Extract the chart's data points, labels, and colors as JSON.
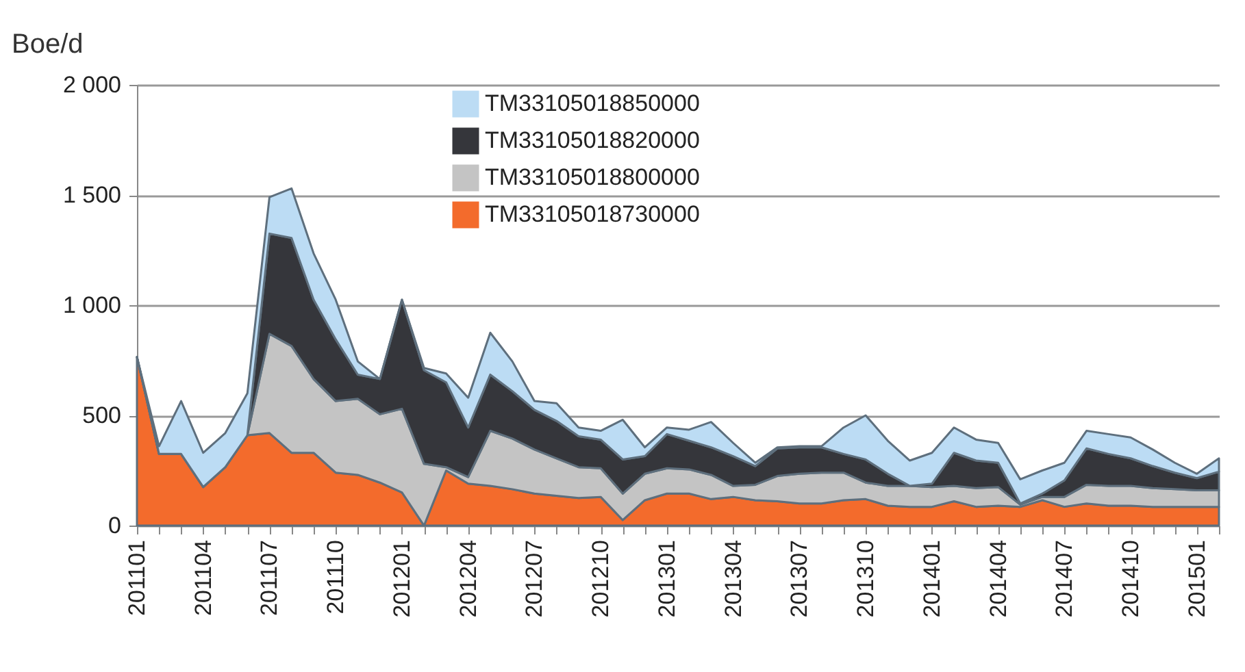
{
  "chart_data": {
    "type": "area",
    "ylabel": "Boe/d",
    "stacked": true,
    "grid": "y",
    "legend": "top left",
    "ylim": [
      0,
      2000
    ],
    "yticks": [
      {
        "value": 0,
        "label": "0"
      },
      {
        "value": 500,
        "label": "500"
      },
      {
        "value": 1000,
        "label": "1 000"
      },
      {
        "value": 1500,
        "label": "1 500"
      },
      {
        "value": 2000,
        "label": "2 000"
      }
    ],
    "categories": [
      "201101",
      null,
      null,
      "201104",
      null,
      null,
      "201107",
      null,
      null,
      "201110",
      null,
      null,
      "201201",
      null,
      null,
      "201204",
      null,
      null,
      "201207",
      null,
      null,
      "201210",
      null,
      null,
      "201301",
      null,
      null,
      "201304",
      null,
      null,
      "201307",
      null,
      null,
      "201310",
      null,
      null,
      "201401",
      null,
      null,
      "201404",
      null,
      null,
      "201407",
      null,
      null,
      "201410",
      null,
      null,
      "201501",
      null
    ],
    "series": [
      {
        "name": "TM33105018730000",
        "color": "#f36b2c",
        "values": [
          765,
          325,
          325,
          175,
          265,
          410,
          420,
          330,
          330,
          240,
          230,
          195,
          150,
          0,
          250,
          190,
          180,
          165,
          145,
          135,
          125,
          130,
          25,
          115,
          145,
          145,
          120,
          130,
          115,
          110,
          100,
          100,
          115,
          120,
          90,
          85,
          85,
          110,
          85,
          90,
          85,
          115,
          85,
          100,
          90,
          90,
          85,
          85,
          85,
          85
        ]
      },
      {
        "name": "TM33105018800000",
        "color": "#c4c4c4",
        "values": [
          0,
          0,
          0,
          0,
          0,
          0,
          450,
          485,
          335,
          325,
          345,
          310,
          380,
          280,
          15,
          30,
          250,
          230,
          200,
          170,
          140,
          130,
          120,
          120,
          115,
          110,
          110,
          50,
          70,
          115,
          135,
          140,
          125,
          75,
          90,
          95,
          90,
          70,
          85,
          85,
          10,
          15,
          45,
          85,
          90,
          90,
          85,
          80,
          75,
          75
        ]
      },
      {
        "name": "TM33105018820000",
        "color": "#35363b",
        "values": [
          0,
          0,
          0,
          0,
          0,
          0,
          455,
          490,
          360,
          280,
          110,
          160,
          495,
          425,
          385,
          225,
          255,
          215,
          180,
          170,
          140,
          130,
          155,
          80,
          155,
          130,
          125,
          135,
          85,
          125,
          120,
          115,
          85,
          105,
          55,
          0,
          15,
          150,
          125,
          110,
          5,
          15,
          75,
          165,
          145,
          125,
          100,
          75,
          55,
          85
        ]
      },
      {
        "name": "TM33105018850000",
        "color": "#bcdcf4",
        "values": [
          0,
          35,
          240,
          155,
          155,
          190,
          165,
          225,
          210,
          180,
          60,
          0,
          0,
          10,
          40,
          135,
          190,
          135,
          40,
          80,
          40,
          40,
          180,
          40,
          30,
          50,
          115,
          60,
          15,
          5,
          5,
          5,
          120,
          200,
          150,
          115,
          140,
          115,
          95,
          90,
          110,
          105,
          80,
          80,
          90,
          95,
          75,
          45,
          20,
          60
        ]
      }
    ]
  }
}
